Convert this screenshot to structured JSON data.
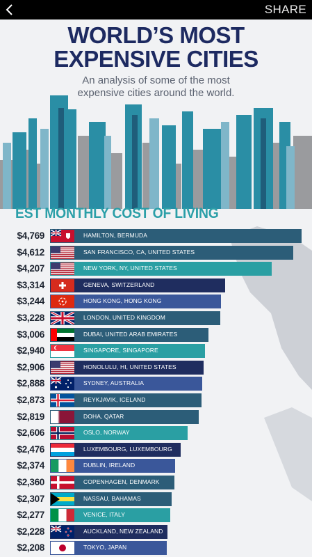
{
  "header": {
    "share_label": "SHARE"
  },
  "title_line1": "WORLD’S MOST",
  "title_line2": "EXPENSIVE CITIES",
  "subtitle_line1": "An analysis of some of the most",
  "subtitle_line2": "expensive cities around the world.",
  "colors": {
    "navy": "#1f2d5f",
    "teal": "#2a9fa3",
    "slate": "#2c5d78",
    "royal": "#3a579a",
    "title": "#1d2a61"
  },
  "chart_data": {
    "type": "bar",
    "orientation": "horizontal",
    "title": "EST MONTHLY COST OF LIVING",
    "xlim": [
      0,
      4769
    ],
    "categories": [
      "HAMILTON, BERMUDA",
      "SAN FRANCISCO, CA, UNITED STATES",
      "NEW YORK, NY, UNITED STATES",
      "GENEVA, SWITZERLAND",
      "HONG KONG, HONG KONG",
      "LONDON, UNITED KINGDOM",
      "DUBAI, UNITED ARAB EMIRATES",
      "SINGAPORE, SINGAPORE",
      "HONOLULU, HI, UNITED STATES",
      "SYDNEY, AUSTRALIA",
      "REYKJAVIK, ICELAND",
      "DOHA, QATAR",
      "OSLO, NORWAY",
      "LUXEMBOURG, LUXEMBOURG",
      "DUBLIN, IRELAND",
      "COPENHAGEN, DENMARK",
      "NASSAU, BAHAMAS",
      "VENICE, ITALY",
      "AUCKLAND, NEW ZEALAND",
      "TOKYO, JAPAN"
    ],
    "values": [
      4769,
      4612,
      4207,
      3314,
      3244,
      3228,
      3006,
      2940,
      2906,
      2888,
      2873,
      2819,
      2606,
      2476,
      2374,
      2360,
      2307,
      2277,
      2228,
      2208
    ],
    "value_labels": [
      "$4,769",
      "$4,612",
      "$4,207",
      "$3,314",
      "$3,244",
      "$3,228",
      "$3,006",
      "$2,940",
      "$2,906",
      "$2,888",
      "$2,873",
      "$2,819",
      "$2,606",
      "$2,476",
      "$2,374",
      "$2,360",
      "$2,307",
      "$2,277",
      "$2,228",
      "$2,208"
    ],
    "bar_colors": [
      "#2c5d78",
      "#2c5d78",
      "#2a9fa3",
      "#1f2d5f",
      "#3a579a",
      "#2c5d78",
      "#2c5d78",
      "#2a9fa3",
      "#1f2d5f",
      "#3a579a",
      "#2c5d78",
      "#2c5d78",
      "#2a9fa3",
      "#1f2d5f",
      "#3a579a",
      "#2c5d78",
      "#2c5d78",
      "#2a9fa3",
      "#1f2d5f",
      "#3a579a"
    ],
    "flags": [
      "bermuda-flag-icon",
      "usa-flag-icon",
      "usa-flag-icon",
      "switzerland-flag-icon",
      "hong-kong-flag-icon",
      "uk-flag-icon",
      "uae-flag-icon",
      "singapore-flag-icon",
      "usa-flag-icon",
      "australia-flag-icon",
      "iceland-flag-icon",
      "qatar-flag-icon",
      "norway-flag-icon",
      "luxembourg-flag-icon",
      "ireland-flag-icon",
      "denmark-flag-icon",
      "bahamas-flag-icon",
      "italy-flag-icon",
      "new-zealand-flag-icon",
      "japan-flag-icon"
    ]
  }
}
